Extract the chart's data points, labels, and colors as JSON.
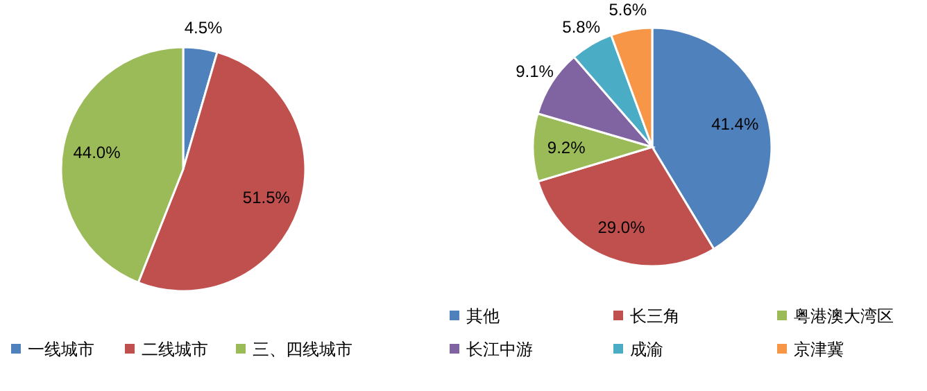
{
  "chart_data": [
    {
      "type": "pie",
      "categories": [
        "一线城市",
        "二线城市",
        "三、四线城市"
      ],
      "values": [
        4.5,
        51.5,
        44.0
      ],
      "colors": [
        "#4f81bd",
        "#c0504d",
        "#9bbb59"
      ],
      "value_labels": [
        "4.5%",
        "51.5%",
        "44.0%"
      ],
      "legend": "bottom"
    },
    {
      "type": "pie",
      "categories": [
        "其他",
        "长三角",
        "粤港澳大湾区",
        "长江中游",
        "成渝",
        "京津冀"
      ],
      "values": [
        41.4,
        29.0,
        9.2,
        9.1,
        5.8,
        5.6
      ],
      "colors": [
        "#4f81bd",
        "#c0504d",
        "#9bbb59",
        "#8064a2",
        "#4bacc6",
        "#f79646"
      ],
      "value_labels": [
        "41.4%",
        "29.0%",
        "9.2%",
        "9.1%",
        "5.8%",
        "5.6%"
      ],
      "legend": "bottom"
    }
  ]
}
